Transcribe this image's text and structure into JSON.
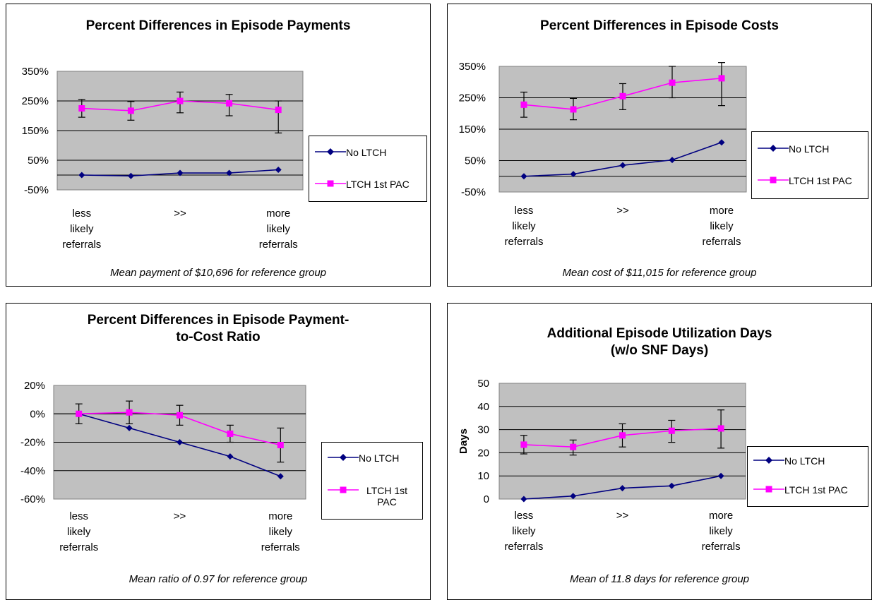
{
  "legend": {
    "no_ltch": "No LTCH",
    "ltch_1st_pac": "LTCH 1st PAC",
    "ltch_1st_pac_wrapped": [
      "LTCH 1st",
      "PAC"
    ]
  },
  "colors": {
    "no_ltch": "#000080",
    "ltch_1st_pac": "#ff00ff",
    "plot_bg": "#c0c0c0",
    "grid": "#000000"
  },
  "panels": [
    {
      "title_lines": [
        "Percent Differences in Episode Payments"
      ],
      "note": "Mean payment of $10,696 for reference group"
    },
    {
      "title_lines": [
        "Percent Differences in Episode Costs"
      ],
      "note": "Mean cost of $11,015 for reference group"
    },
    {
      "title_lines": [
        "Percent Differences in Episode Payment-",
        "to-Cost Ratio"
      ],
      "note": "Mean ratio of 0.97 for reference group"
    },
    {
      "title_lines": [
        "Additional Episode Utilization Days",
        "(w/o SNF Days)"
      ],
      "note": "Mean of 11.8 days for reference group"
    }
  ],
  "chart_data": [
    {
      "type": "line",
      "title": "Percent Differences in Episode Payments",
      "x_labels": [
        [
          "less",
          "likely",
          "referrals"
        ],
        [],
        [
          ">>"
        ],
        [],
        [
          "more",
          "likely",
          "referrals"
        ]
      ],
      "y_ticks": [
        "350%",
        "250%",
        "150%",
        "50%",
        "-50%"
      ],
      "ylim": [
        -50,
        350
      ],
      "grid": true,
      "legend_position": "right",
      "series": [
        {
          "name": "No LTCH",
          "values": [
            0,
            -3,
            7,
            7,
            18
          ]
        },
        {
          "name": "LTCH 1st PAC",
          "values": [
            225,
            217,
            250,
            242,
            220
          ],
          "error_low": [
            195,
            185,
            210,
            200,
            142
          ],
          "error_high": [
            255,
            248,
            280,
            272,
            250
          ]
        }
      ]
    },
    {
      "type": "line",
      "title": "Percent Differences in Episode Costs",
      "x_labels": [
        [
          "less",
          "likely",
          "referrals"
        ],
        [],
        [
          ">>"
        ],
        [],
        [
          "more",
          "likely",
          "referrals"
        ]
      ],
      "y_ticks": [
        "350%",
        "250%",
        "150%",
        "50%",
        "-50%"
      ],
      "ylim": [
        -50,
        350
      ],
      "grid": true,
      "legend_position": "right",
      "series": [
        {
          "name": "No LTCH",
          "values": [
            0,
            7,
            35,
            52,
            108
          ]
        },
        {
          "name": "LTCH 1st PAC",
          "values": [
            228,
            213,
            255,
            298,
            312
          ],
          "error_low": [
            188,
            180,
            212,
            250,
            225
          ],
          "error_high": [
            268,
            248,
            295,
            350,
            362
          ]
        }
      ]
    },
    {
      "type": "line",
      "title": "Percent Differences in Episode Payment-to-Cost Ratio",
      "x_labels": [
        [
          "less",
          "likely",
          "referrals"
        ],
        [],
        [
          ">>"
        ],
        [],
        [
          "more",
          "likely",
          "referrals"
        ]
      ],
      "y_ticks": [
        "20%",
        "0%",
        "-20%",
        "-40%",
        "-60%"
      ],
      "ylim": [
        -60,
        20
      ],
      "grid": true,
      "legend_position": "right",
      "series": [
        {
          "name": "No LTCH",
          "values": [
            0,
            -10,
            -20,
            -30,
            -44
          ]
        },
        {
          "name": "LTCH 1st PAC",
          "values": [
            0,
            1,
            -1,
            -14,
            -22
          ],
          "error_low": [
            -7,
            -7,
            -8,
            -20,
            -34
          ],
          "error_high": [
            7,
            9,
            6,
            -8,
            -10
          ]
        }
      ]
    },
    {
      "type": "line",
      "title": "Additional Episode Utilization Days (w/o SNF Days)",
      "ylabel": "Days",
      "x_labels": [
        [
          "less",
          "likely",
          "referrals"
        ],
        [],
        [
          ">>"
        ],
        [],
        [
          "more",
          "likely",
          "referrals"
        ]
      ],
      "y_ticks": [
        "50",
        "40",
        "30",
        "20",
        "10",
        "0"
      ],
      "ylim": [
        0,
        50
      ],
      "grid": true,
      "legend_position": "right",
      "series": [
        {
          "name": "No LTCH",
          "values": [
            0,
            1.3,
            4.7,
            5.7,
            10
          ]
        },
        {
          "name": "LTCH 1st PAC",
          "values": [
            23.5,
            22.5,
            27.5,
            29.5,
            30.5
          ],
          "error_low": [
            19.5,
            19,
            22.5,
            24.5,
            22
          ],
          "error_high": [
            27.5,
            25.5,
            32.5,
            34,
            38.5
          ]
        }
      ]
    }
  ]
}
